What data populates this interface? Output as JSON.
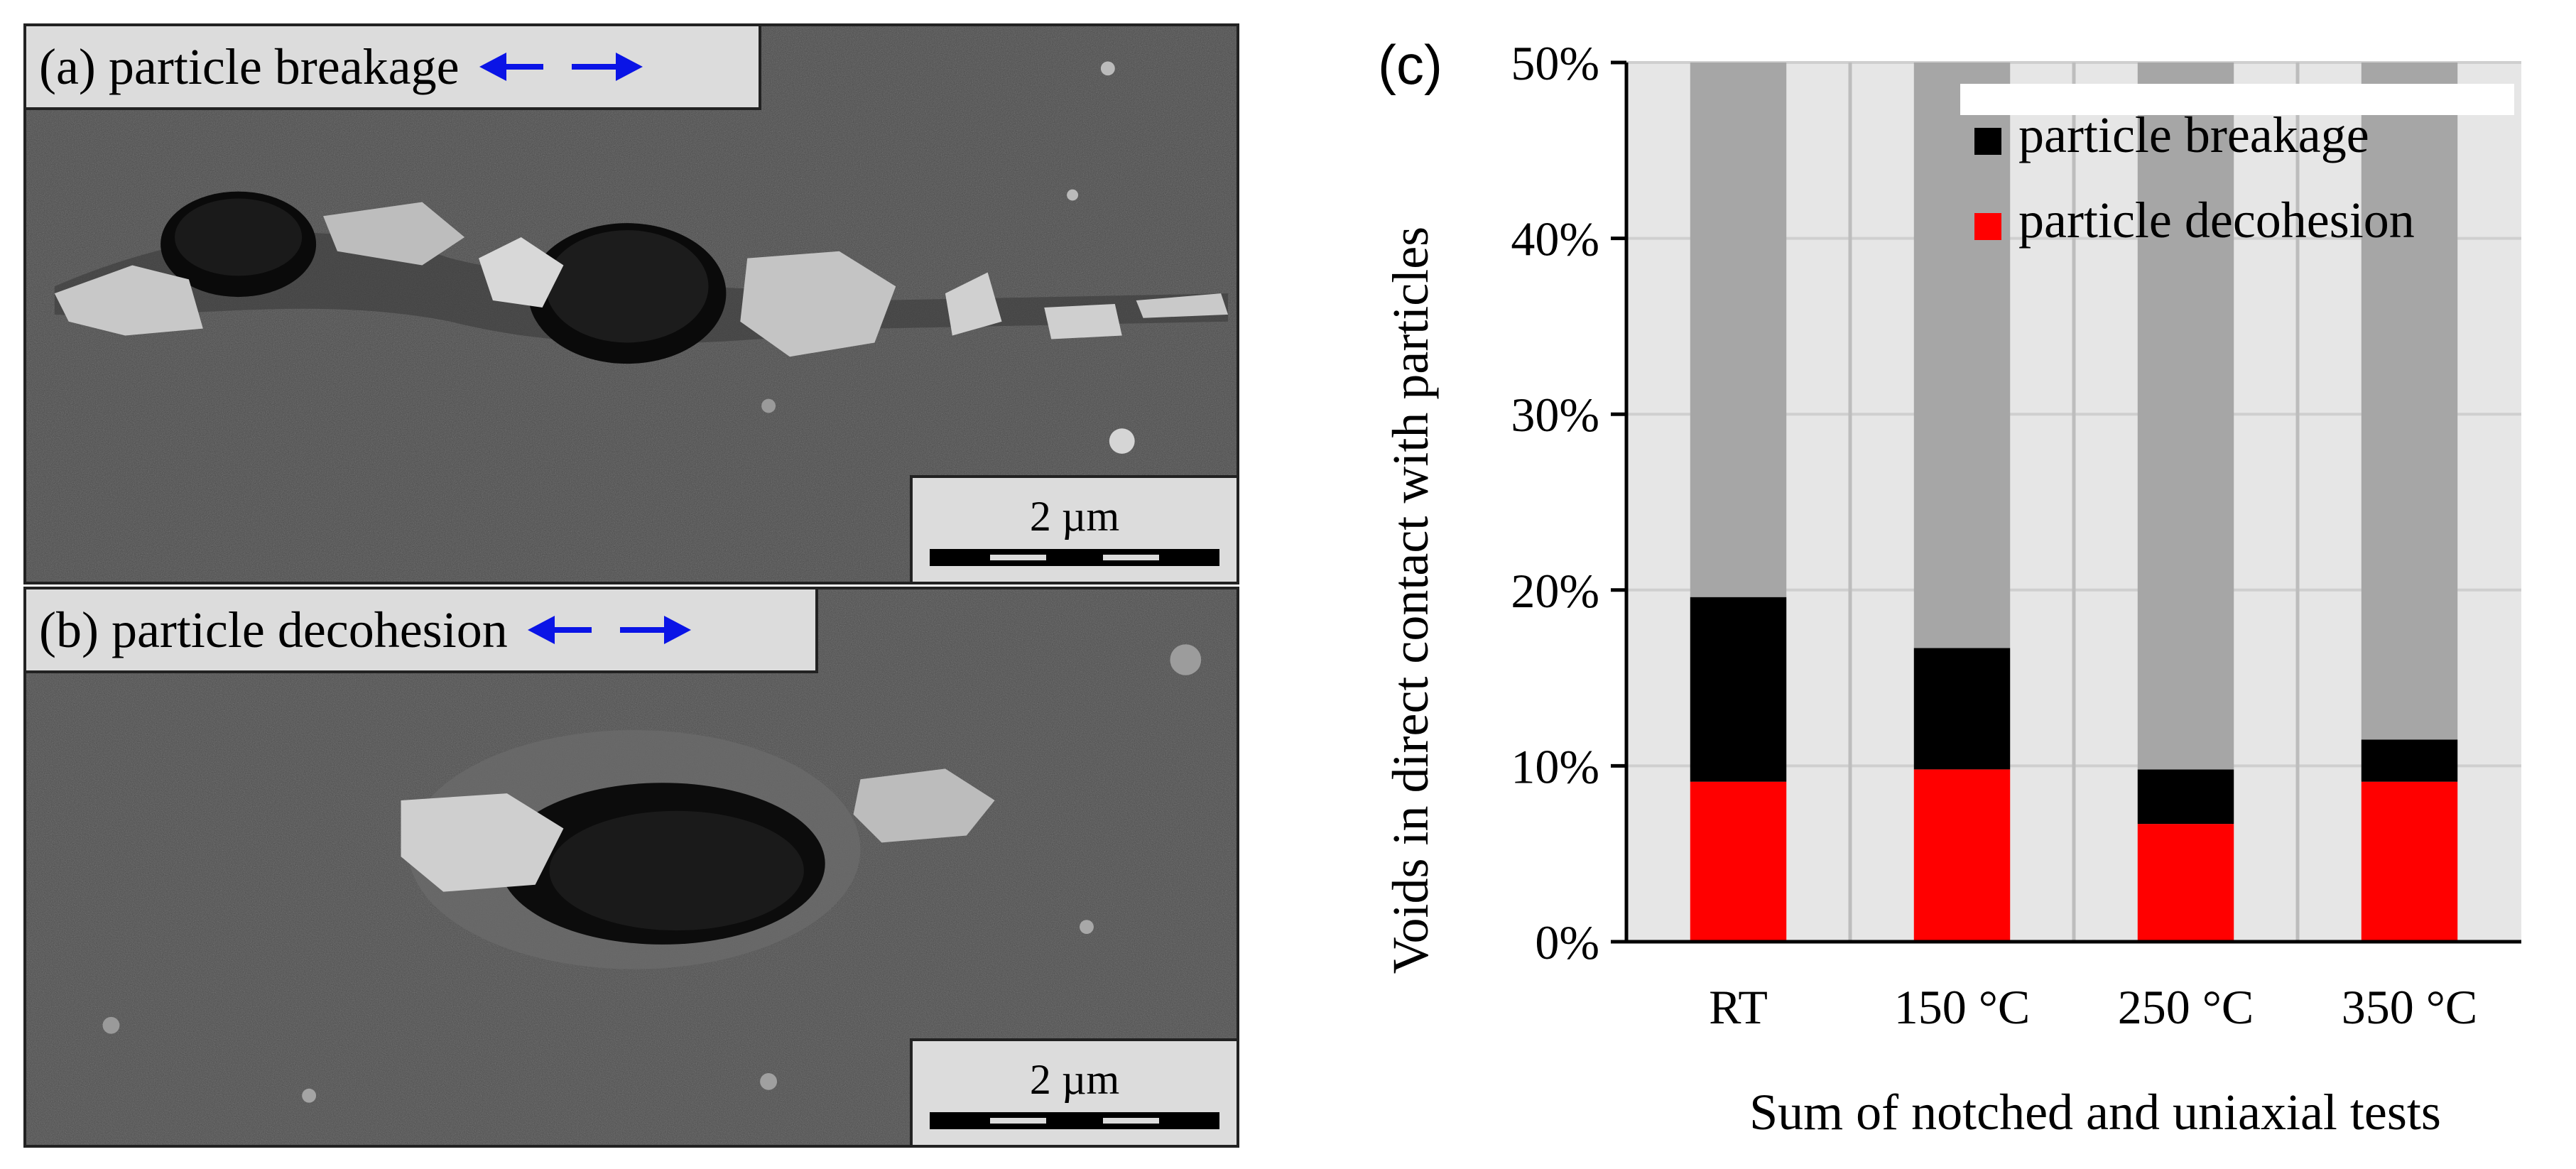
{
  "figure": {
    "panel_a": {
      "label": "(a) particle breakage",
      "scale": "2 µm",
      "arrow_color": "#0a14e6"
    },
    "panel_b": {
      "label": "(b) particle decohesion",
      "scale": "2 µm",
      "arrow_color": "#0a14e6"
    },
    "panel_c": {
      "label": "(c)"
    }
  },
  "chart_data": {
    "type": "bar",
    "stacked": true,
    "categories": [
      "RT",
      "150 °C",
      "250 °C",
      "350 °C"
    ],
    "series": [
      {
        "name": "particle decohesion",
        "values": [
          9.1,
          9.8,
          6.7,
          9.1
        ],
        "color": "#ff0000"
      },
      {
        "name": "particle breakage",
        "values": [
          10.5,
          6.9,
          3.1,
          2.4
        ],
        "color": "#000000"
      },
      {
        "name": "",
        "values": [
          30.4,
          33.3,
          40.2,
          38.5
        ],
        "color": "#a6a6a6"
      }
    ],
    "legend_entries": [
      "particle breakage",
      "particle decohesion"
    ],
    "title": "",
    "xlabel": "Sum of notched and uniaxial tests",
    "ylabel": "Voids in direct contact with particles",
    "ylim": [
      0,
      50
    ],
    "yticks": [
      0,
      10,
      20,
      30,
      40,
      50
    ],
    "ytick_labels": [
      "0%",
      "10%",
      "20%",
      "30%",
      "40%",
      "50%"
    ],
    "grid": true,
    "legend_position": "top-right",
    "plot_background": "#e6e6e6"
  }
}
